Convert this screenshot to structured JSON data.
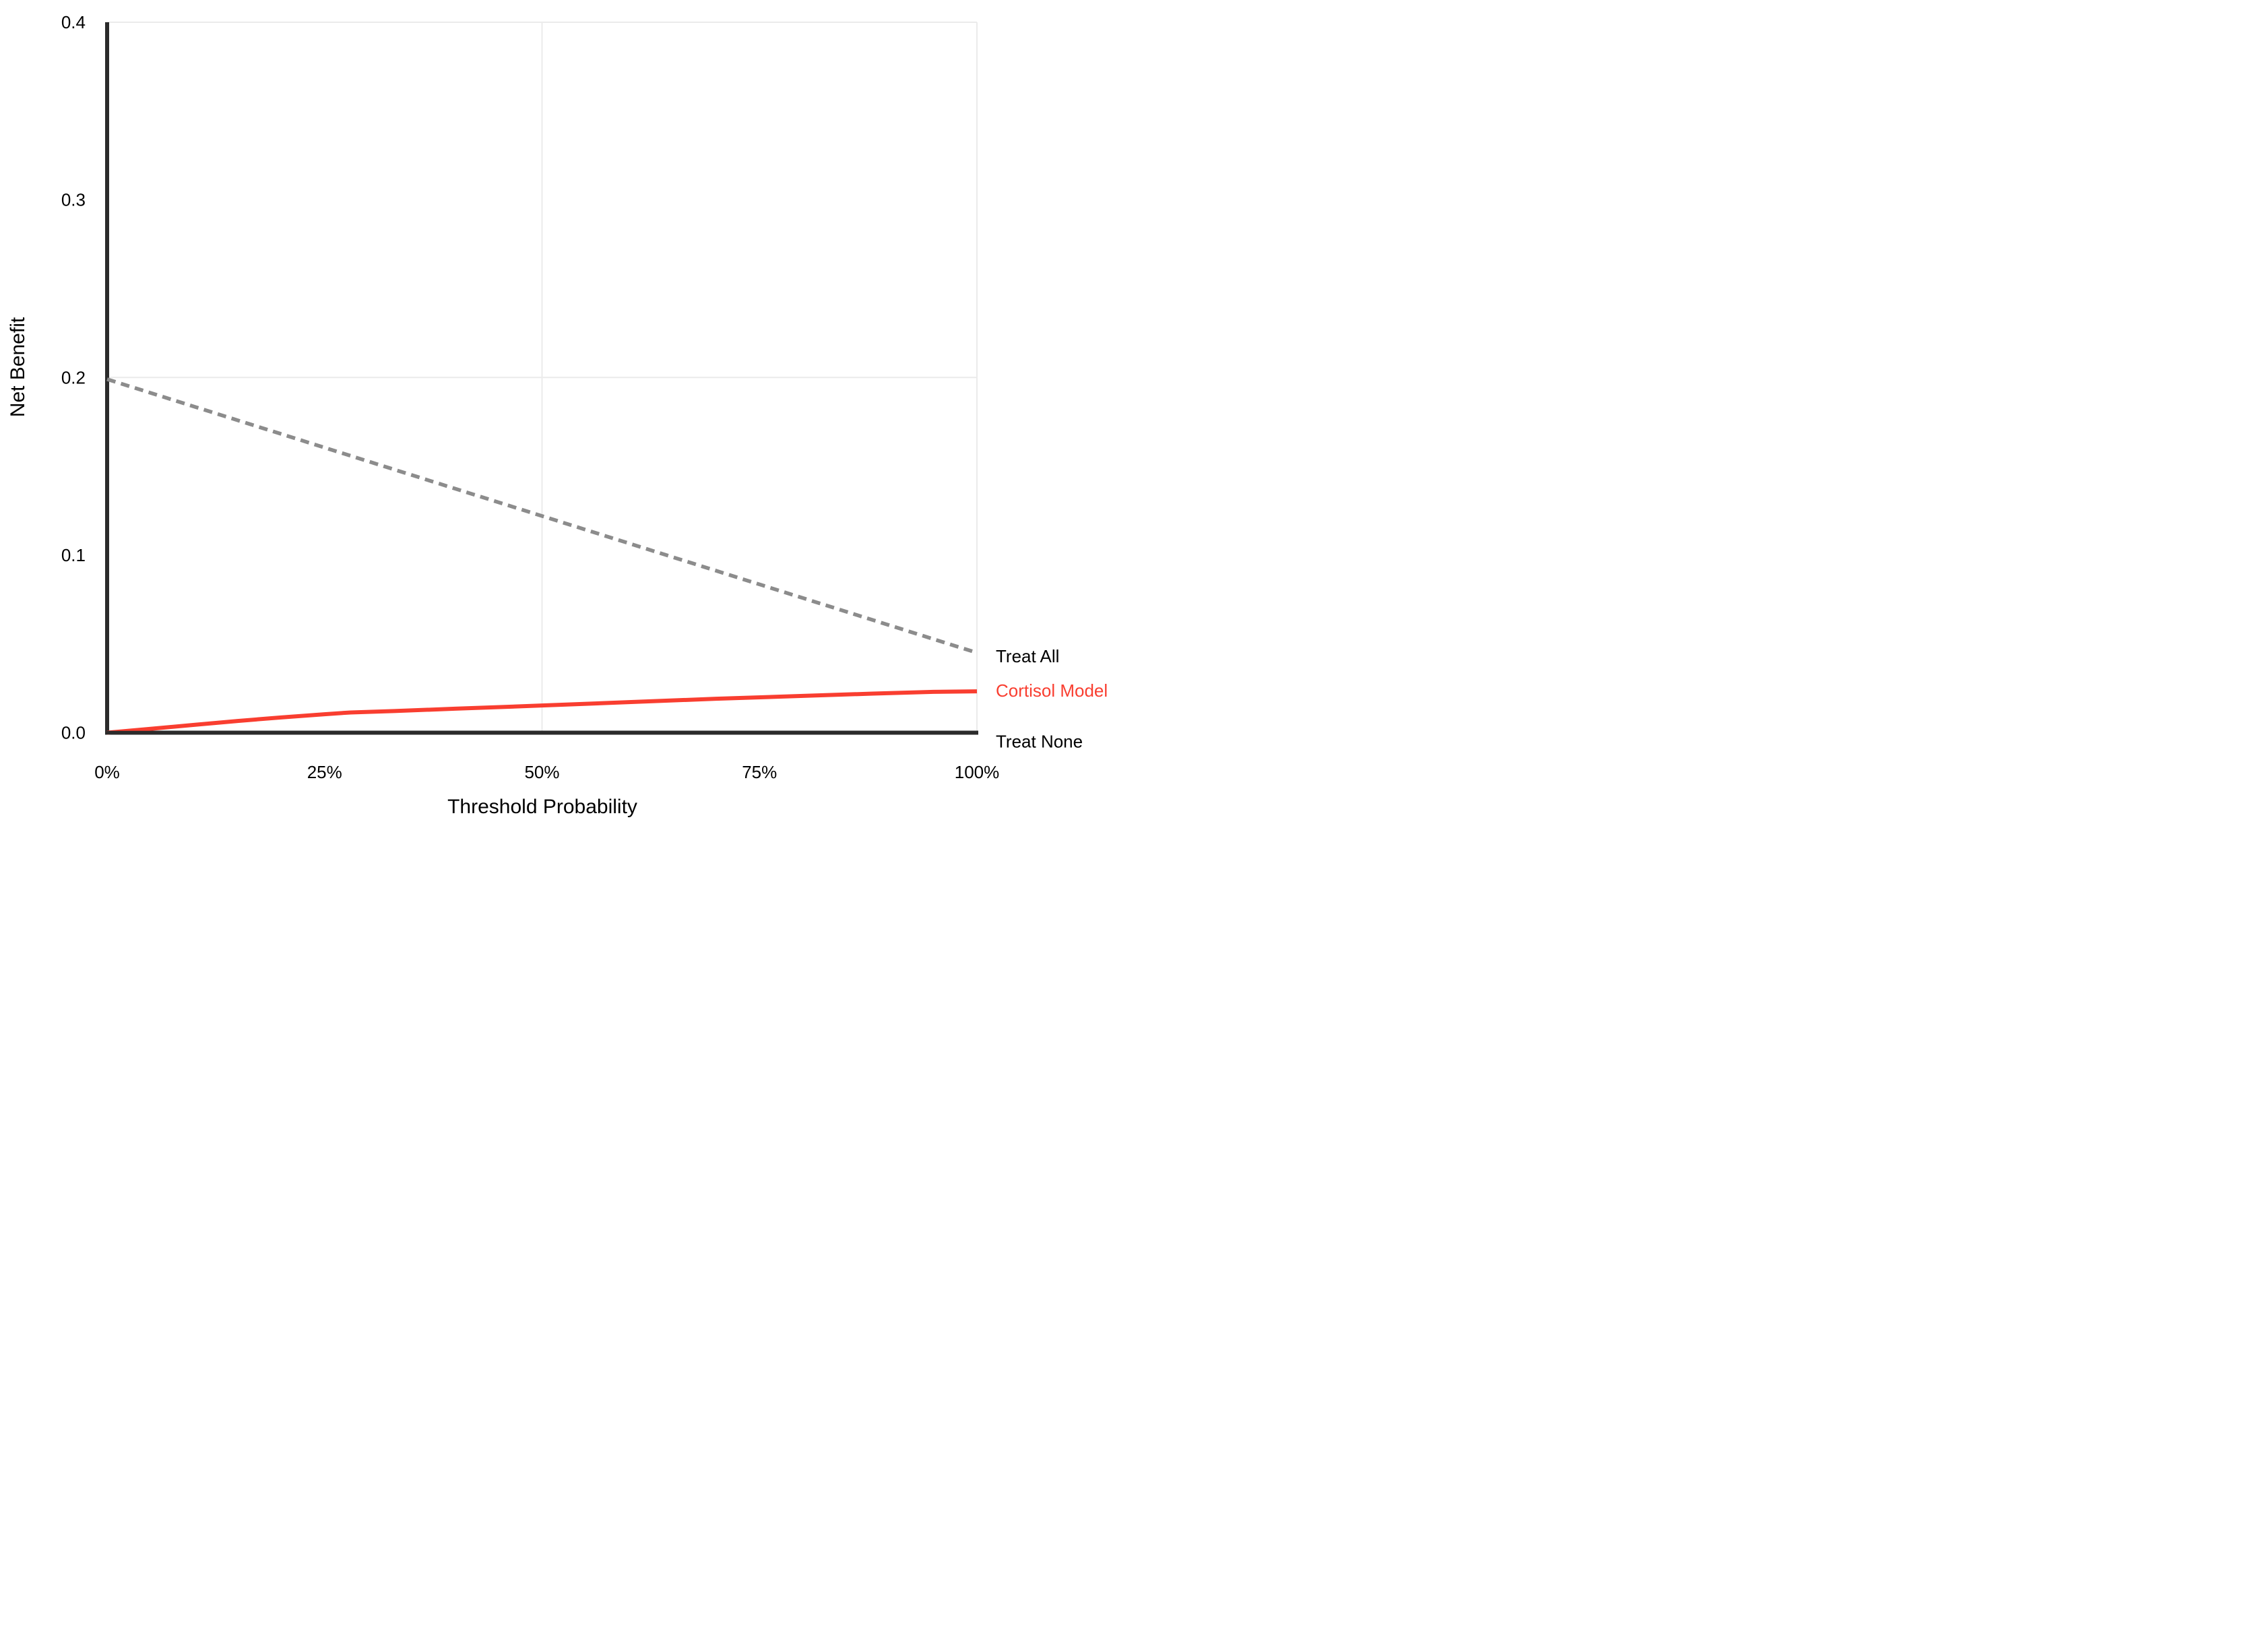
{
  "figure": {
    "x_axis_title": "Threshold Probability",
    "y_axis_title": "Net Benefit",
    "background_color": "#ffffff",
    "axis_color": "#2b2b2b",
    "gridline_color": "#ebebeb",
    "text_color": "#000000"
  },
  "chart_data": {
    "type": "line",
    "title": "",
    "xlabel": "Threshold Probability",
    "ylabel": "Net Benefit",
    "xlim": [
      0,
      1
    ],
    "ylim": [
      0,
      0.4
    ],
    "grid": {
      "x_gridlines_at": [
        0.5,
        1.0
      ],
      "y_gridlines_at": [
        0.2,
        0.4
      ],
      "color": "#ebebeb"
    },
    "x_ticks": [
      {
        "value": 0.0,
        "label": "0%"
      },
      {
        "value": 0.25,
        "label": "25%"
      },
      {
        "value": 0.5,
        "label": "50%"
      },
      {
        "value": 0.75,
        "label": "75%"
      },
      {
        "value": 1.0,
        "label": "100%"
      }
    ],
    "y_ticks": [
      {
        "value": 0.0,
        "label": "0.0"
      },
      {
        "value": 0.1,
        "label": "0.1"
      },
      {
        "value": 0.2,
        "label": "0.2"
      },
      {
        "value": 0.3,
        "label": "0.3"
      },
      {
        "value": 0.4,
        "label": "0.4"
      }
    ],
    "legend_position": "right-end-labels",
    "series": [
      {
        "name": "Treat All",
        "style": "dashed",
        "color": "#8c8c8c",
        "label_color": "#000000",
        "label_dy": 5,
        "x": [
          0.0,
          1.0
        ],
        "y": [
          0.199,
          0.045
        ]
      },
      {
        "name": "Cortisol Model",
        "style": "solid",
        "color": "#f93e30",
        "label_color": "#f93e30",
        "label_dy": -1,
        "x": [
          0.0,
          0.05,
          0.1,
          0.15,
          0.2,
          0.25,
          0.28,
          0.33,
          0.4,
          0.5,
          0.6,
          0.7,
          0.8,
          0.88,
          0.95,
          1.0
        ],
        "y": [
          0.0,
          0.0022,
          0.0044,
          0.0066,
          0.0086,
          0.0104,
          0.0114,
          0.0122,
          0.0135,
          0.0153,
          0.0172,
          0.0191,
          0.0207,
          0.022,
          0.023,
          0.0233
        ]
      },
      {
        "name": "Treat None",
        "style": "solid",
        "color": "#2b2b2b",
        "label_color": "#000000",
        "label_dy": 13,
        "x": [
          0.0,
          1.0
        ],
        "y": [
          0.0,
          0.0
        ]
      }
    ]
  }
}
